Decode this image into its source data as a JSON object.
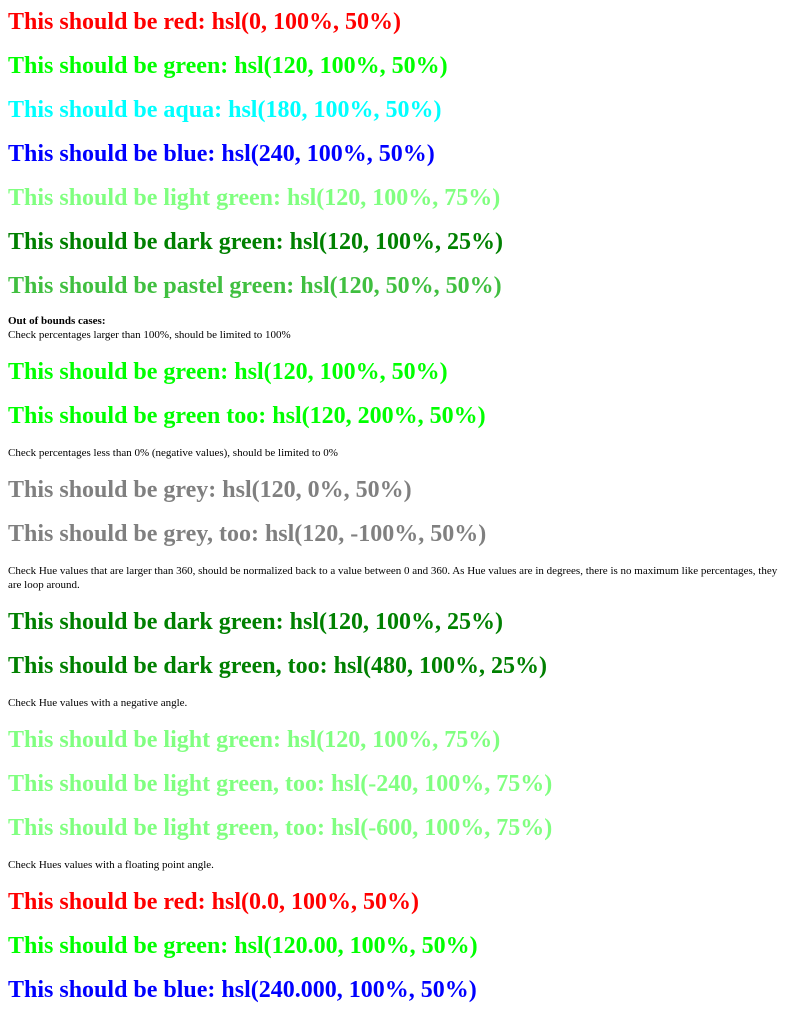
{
  "colors": {
    "red": "#ff0000",
    "green": "#00ff00",
    "aqua": "#00ffff",
    "blue": "#0000ff",
    "light_green": "#80ff80",
    "dark_green": "#008000",
    "pastel_green": "#40bf40",
    "grey": "#808080"
  },
  "lines": [
    {
      "text": "This should be red: hsl(0, 100%, 50%)",
      "color": "#ff0000"
    },
    {
      "text": "This should be green: hsl(120, 100%, 50%)",
      "color": "#00ff00"
    },
    {
      "text": "This should be aqua: hsl(180, 100%, 50%)",
      "color": "#00ffff"
    },
    {
      "text": "This should be blue: hsl(240, 100%, 50%)",
      "color": "#0000ff"
    },
    {
      "text": "This should be light green: hsl(120, 100%, 75%)",
      "color": "#80ff80"
    },
    {
      "text": "This should be dark green: hsl(120, 100%, 25%)",
      "color": "#008000"
    },
    {
      "text": "This should be pastel green: hsl(120, 50%, 50%)",
      "color": "#40bf40"
    }
  ],
  "out_of_bounds": {
    "heading": "Out of bounds cases:",
    "note": "Check percentages larger than 100%, should be limited to 100%",
    "lines": [
      {
        "text": "This should be green: hsl(120, 100%, 50%)",
        "color": "#00ff00"
      },
      {
        "text": "This should be green too: hsl(120, 200%, 50%)",
        "color": "#00ff00"
      }
    ]
  },
  "negative": {
    "note": "Check percentages less than 0% (negative values), should be limited to 0%",
    "lines": [
      {
        "text": "This should be grey: hsl(120, 0%, 50%)",
        "color": "#808080"
      },
      {
        "text": "This should be grey, too: hsl(120, -100%, 50%)",
        "color": "#808080"
      }
    ]
  },
  "hue_large": {
    "note": "Check Hue values that are larger than 360, should be normalized back to a value between 0 and 360. As Hue values are in degrees, there is no maximum like percentages, they are loop around.",
    "lines": [
      {
        "text": "This should be dark green: hsl(120, 100%, 25%)",
        "color": "#008000"
      },
      {
        "text": "This should be dark green, too: hsl(480, 100%, 25%)",
        "color": "#008000"
      }
    ]
  },
  "hue_negative": {
    "note": "Check Hue values with a negative angle.",
    "lines": [
      {
        "text": "This should be light green: hsl(120, 100%, 75%)",
        "color": "#80ff80"
      },
      {
        "text": "This should be light green, too: hsl(-240, 100%, 75%)",
        "color": "#80ff80"
      },
      {
        "text": "This should be light green, too: hsl(-600, 100%, 75%)",
        "color": "#80ff80"
      }
    ]
  },
  "hue_float": {
    "note": "Check Hues values with a floating point angle.",
    "lines": [
      {
        "text": "This should be red: hsl(0.0, 100%, 50%)",
        "color": "#ff0000"
      },
      {
        "text": "This should be green: hsl(120.00, 100%, 50%)",
        "color": "#00ff00"
      },
      {
        "text": "This should be blue: hsl(240.000, 100%, 50%)",
        "color": "#0000ff"
      }
    ]
  }
}
